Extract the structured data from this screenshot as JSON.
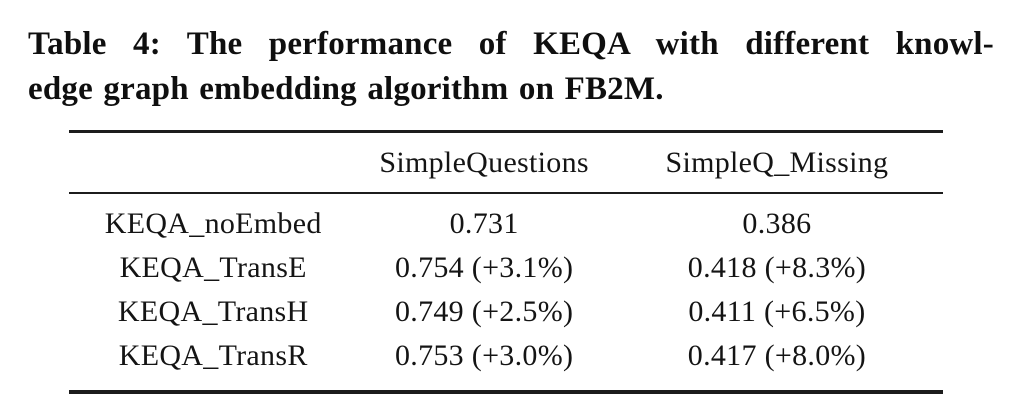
{
  "caption": {
    "line1": "Table 4: The performance of KEQA with different knowl-",
    "line2": "edge graph embedding algorithm on FB2M."
  },
  "table": {
    "columns": [
      "",
      "SimpleQuestions",
      "SimpleQ_Missing"
    ],
    "rows": [
      [
        "KEQA_noEmbed",
        "0.731",
        "0.386"
      ],
      [
        "KEQA_TransE",
        "0.754 (+3.1%)",
        "0.418 (+8.3%)"
      ],
      [
        "KEQA_TransH",
        "0.749 (+2.5%)",
        "0.411 (+6.5%)"
      ],
      [
        "KEQA_TransR",
        "0.753 (+3.0%)",
        "0.417 (+8.0%)"
      ]
    ]
  },
  "colors": {
    "background": "#ffffff",
    "text": "#121212",
    "rule": "#1c1c1c"
  }
}
